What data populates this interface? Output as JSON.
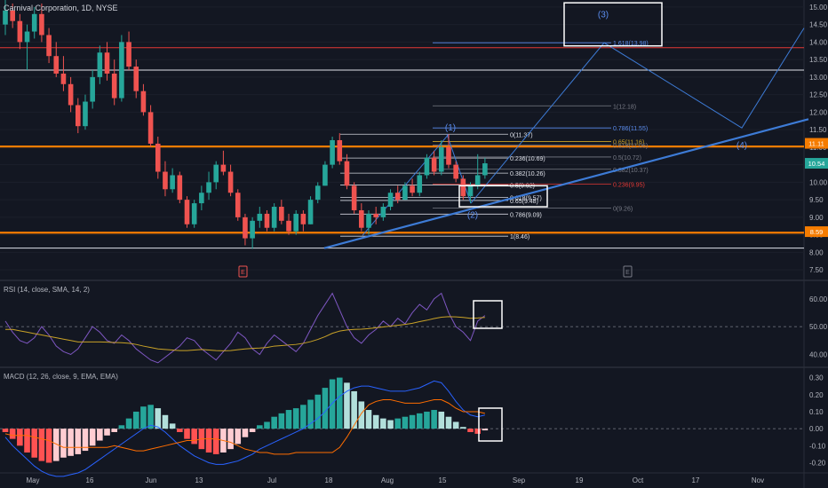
{
  "header": {
    "symbol_line": "Carnival Corporation, 1D, NYSE"
  },
  "rsi_label": "RSI (14, close, SMA, 14, 2)",
  "macd_label": "MACD (12, 26, close, 9, EMA, EMA)",
  "colors": {
    "bg": "#131722",
    "up": "#26a69a",
    "down": "#ef5350",
    "grid": "#2a2e39",
    "orange": "#f57c00",
    "red_line": "#e53935",
    "white_line": "#e0e3eb",
    "blue": "#2962ff",
    "rsi": "#7e57c2",
    "rsi_ma": "#c9a227",
    "macd_line": "#2962ff",
    "signal": "#ff6d00",
    "hist_up_strong": "#26a69a",
    "hist_up_weak": "#b2dfdb",
    "hist_dn_strong": "#ff5252",
    "hist_dn_weak": "#ffcdd2"
  },
  "chart_data": [
    {
      "type": "candlestick",
      "title": "Carnival Corporation, 1D, NYSE",
      "x_ticks": [
        "May",
        "16",
        "Jun",
        "13",
        "Jul",
        "18",
        "Aug",
        "15",
        "Sep",
        "19",
        "Oct",
        "17",
        "Nov"
      ],
      "y_ticks": [
        7.5,
        8.0,
        8.5,
        9.0,
        9.5,
        10.0,
        10.5,
        11.0,
        11.5,
        12.0,
        12.5,
        13.0,
        13.5,
        14.0,
        14.5,
        15.0
      ],
      "ylim": [
        7.25,
        15.2
      ],
      "price_tags": [
        {
          "value": "11.11",
          "color": "#f57c00"
        },
        {
          "value": "10.54",
          "color": "#26a69a"
        },
        {
          "value": "8.59",
          "color": "#f57c00"
        }
      ],
      "earnings_markers": [
        "E",
        "E"
      ],
      "candles": [
        {
          "o": 14.5,
          "h": 15.2,
          "l": 14.2,
          "c": 14.9
        },
        {
          "o": 14.9,
          "h": 15.1,
          "l": 14.4,
          "c": 14.6
        },
        {
          "o": 14.6,
          "h": 14.8,
          "l": 13.8,
          "c": 14.0
        },
        {
          "o": 14.0,
          "h": 14.5,
          "l": 13.2,
          "c": 14.3
        },
        {
          "o": 14.3,
          "h": 15.0,
          "l": 14.1,
          "c": 14.8
        },
        {
          "o": 14.8,
          "h": 15.1,
          "l": 14.0,
          "c": 14.2
        },
        {
          "o": 14.2,
          "h": 14.4,
          "l": 13.4,
          "c": 13.6
        },
        {
          "o": 13.6,
          "h": 14.0,
          "l": 13.0,
          "c": 13.1
        },
        {
          "o": 13.1,
          "h": 13.6,
          "l": 12.6,
          "c": 12.8
        },
        {
          "o": 12.8,
          "h": 13.0,
          "l": 12.0,
          "c": 12.2
        },
        {
          "o": 12.2,
          "h": 12.4,
          "l": 11.4,
          "c": 11.6
        },
        {
          "o": 11.6,
          "h": 12.5,
          "l": 11.5,
          "c": 12.3
        },
        {
          "o": 12.3,
          "h": 13.2,
          "l": 12.1,
          "c": 13.0
        },
        {
          "o": 13.0,
          "h": 13.9,
          "l": 12.8,
          "c": 13.7
        },
        {
          "o": 13.7,
          "h": 14.0,
          "l": 12.9,
          "c": 13.1
        },
        {
          "o": 13.1,
          "h": 13.5,
          "l": 12.2,
          "c": 12.4
        },
        {
          "o": 12.4,
          "h": 14.2,
          "l": 12.3,
          "c": 14.0
        },
        {
          "o": 14.0,
          "h": 14.3,
          "l": 13.2,
          "c": 13.3
        },
        {
          "o": 13.3,
          "h": 13.5,
          "l": 12.4,
          "c": 12.6
        },
        {
          "o": 12.6,
          "h": 12.8,
          "l": 11.9,
          "c": 12.0
        },
        {
          "o": 12.0,
          "h": 12.2,
          "l": 11.0,
          "c": 11.1
        },
        {
          "o": 11.1,
          "h": 11.3,
          "l": 10.1,
          "c": 10.3
        },
        {
          "o": 10.3,
          "h": 10.6,
          "l": 9.6,
          "c": 9.8
        },
        {
          "o": 9.8,
          "h": 10.4,
          "l": 9.7,
          "c": 10.2
        },
        {
          "o": 10.2,
          "h": 10.3,
          "l": 9.4,
          "c": 9.5
        },
        {
          "o": 9.5,
          "h": 9.6,
          "l": 8.7,
          "c": 8.8
        },
        {
          "o": 8.8,
          "h": 9.5,
          "l": 8.7,
          "c": 9.4
        },
        {
          "o": 9.4,
          "h": 9.9,
          "l": 9.2,
          "c": 9.7
        },
        {
          "o": 9.7,
          "h": 10.3,
          "l": 9.5,
          "c": 10.0
        },
        {
          "o": 10.0,
          "h": 10.6,
          "l": 9.8,
          "c": 10.5
        },
        {
          "o": 10.5,
          "h": 10.9,
          "l": 10.2,
          "c": 10.3
        },
        {
          "o": 10.3,
          "h": 10.5,
          "l": 9.6,
          "c": 9.7
        },
        {
          "o": 9.7,
          "h": 9.8,
          "l": 8.9,
          "c": 9.0
        },
        {
          "o": 9.0,
          "h": 9.1,
          "l": 8.2,
          "c": 8.4
        },
        {
          "o": 8.4,
          "h": 9.0,
          "l": 8.1,
          "c": 8.9
        },
        {
          "o": 8.9,
          "h": 9.3,
          "l": 8.7,
          "c": 9.1
        },
        {
          "o": 9.1,
          "h": 9.2,
          "l": 8.6,
          "c": 8.7
        },
        {
          "o": 8.7,
          "h": 9.4,
          "l": 8.6,
          "c": 9.3
        },
        {
          "o": 9.3,
          "h": 9.5,
          "l": 8.8,
          "c": 8.9
        },
        {
          "o": 8.9,
          "h": 9.1,
          "l": 8.5,
          "c": 8.6
        },
        {
          "o": 8.6,
          "h": 9.2,
          "l": 8.5,
          "c": 9.1
        },
        {
          "o": 9.1,
          "h": 9.2,
          "l": 8.6,
          "c": 8.8
        },
        {
          "o": 8.8,
          "h": 9.6,
          "l": 8.8,
          "c": 9.5
        },
        {
          "o": 9.5,
          "h": 10.0,
          "l": 9.4,
          "c": 9.9
        },
        {
          "o": 9.9,
          "h": 10.6,
          "l": 9.9,
          "c": 10.5
        },
        {
          "o": 10.5,
          "h": 11.3,
          "l": 10.4,
          "c": 11.2
        },
        {
          "o": 11.2,
          "h": 11.4,
          "l": 10.5,
          "c": 10.6
        },
        {
          "o": 10.6,
          "h": 10.8,
          "l": 9.8,
          "c": 9.9
        },
        {
          "o": 9.9,
          "h": 10.0,
          "l": 9.1,
          "c": 9.2
        },
        {
          "o": 9.2,
          "h": 9.4,
          "l": 8.6,
          "c": 8.7
        },
        {
          "o": 8.7,
          "h": 9.2,
          "l": 8.5,
          "c": 9.1
        },
        {
          "o": 9.1,
          "h": 9.3,
          "l": 8.8,
          "c": 9.0
        },
        {
          "o": 9.0,
          "h": 9.4,
          "l": 8.9,
          "c": 9.3
        },
        {
          "o": 9.3,
          "h": 9.8,
          "l": 9.2,
          "c": 9.7
        },
        {
          "o": 9.7,
          "h": 9.9,
          "l": 9.4,
          "c": 9.5
        },
        {
          "o": 9.5,
          "h": 10.0,
          "l": 9.5,
          "c": 9.9
        },
        {
          "o": 9.9,
          "h": 10.1,
          "l": 9.6,
          "c": 9.7
        },
        {
          "o": 9.7,
          "h": 10.3,
          "l": 9.6,
          "c": 10.2
        },
        {
          "o": 10.2,
          "h": 10.8,
          "l": 10.1,
          "c": 10.7
        },
        {
          "o": 10.7,
          "h": 10.9,
          "l": 10.2,
          "c": 10.3
        },
        {
          "o": 10.3,
          "h": 11.2,
          "l": 10.2,
          "c": 11.0
        },
        {
          "o": 11.0,
          "h": 11.37,
          "l": 10.4,
          "c": 10.5
        },
        {
          "o": 10.5,
          "h": 10.6,
          "l": 10.0,
          "c": 10.1
        },
        {
          "o": 10.1,
          "h": 10.2,
          "l": 9.5,
          "c": 9.6
        },
        {
          "o": 9.6,
          "h": 10.0,
          "l": 9.4,
          "c": 9.9
        },
        {
          "o": 9.9,
          "h": 10.8,
          "l": 9.8,
          "c": 10.2
        },
        {
          "o": 10.2,
          "h": 10.7,
          "l": 10.1,
          "c": 10.54
        }
      ],
      "horizontal_levels": [
        {
          "value": 13.84,
          "color": "#e53935"
        },
        {
          "value": 13.2,
          "color": "#e0e3eb"
        },
        {
          "value": 11.02,
          "color": "#f57c00"
        },
        {
          "value": 8.56,
          "color": "#f57c00"
        },
        {
          "value": 8.12,
          "color": "#e0e3eb"
        }
      ],
      "fib_retracement": [
        {
          "label": "0(11.37)",
          "value": 11.37
        },
        {
          "label": "0.236(10.69)",
          "value": 10.69
        },
        {
          "label": "0.382(10.26)",
          "value": 10.26
        },
        {
          "label": "0.5(9.92)",
          "value": 9.92
        },
        {
          "label": "0.618(9.57)",
          "value": 9.57
        },
        {
          "label": "0.65(9.48)",
          "value": 9.48
        },
        {
          "label": "0.786(9.09)",
          "value": 9.09
        },
        {
          "label": "1(8.46)",
          "value": 8.46
        }
      ],
      "fib_extension": [
        {
          "label": "1.618(13.98)",
          "value": 13.98,
          "color": "#5b8def"
        },
        {
          "label": "1(12.18)",
          "value": 12.18,
          "color": "#787b86"
        },
        {
          "label": "0.786(11.55)",
          "value": 11.55,
          "color": "#5b8def"
        },
        {
          "label": "0.65(11.16)",
          "value": 11.16,
          "color": "#c9a227"
        },
        {
          "label": "0.618(11.06)",
          "value": 11.06,
          "color": "#787b86"
        },
        {
          "label": "0.5(10.72)",
          "value": 10.72,
          "color": "#787b86"
        },
        {
          "label": "0.382(10.37)",
          "value": 10.37,
          "color": "#787b86"
        },
        {
          "label": "0.236(9.95)",
          "value": 9.95,
          "color": "#e53935"
        },
        {
          "label": "0(9.26)",
          "value": 9.26,
          "color": "#787b86"
        }
      ],
      "wave_labels": [
        "(1)",
        "(2)",
        "(3)",
        "(4)"
      ]
    },
    {
      "type": "line",
      "title": "RSI (14, close, SMA, 14, 2)",
      "y_ticks": [
        40.0,
        50.0,
        60.0
      ],
      "ylim": [
        36,
        66
      ],
      "reference_level": 50,
      "series": [
        {
          "name": "RSI",
          "values": [
            52,
            48,
            45,
            44,
            46,
            50,
            47,
            43,
            41,
            40,
            42,
            46,
            50,
            48,
            45,
            44,
            47,
            45,
            42,
            40,
            38,
            37,
            39,
            41,
            43,
            46,
            45,
            42,
            40,
            38,
            41,
            44,
            48,
            46,
            42,
            40,
            44,
            47,
            45,
            43,
            41,
            44,
            49,
            54,
            58,
            62,
            56,
            50,
            46,
            44,
            47,
            49,
            52,
            50,
            53,
            51,
            55,
            58,
            56,
            60,
            62,
            55,
            50,
            48,
            45,
            52,
            54
          ]
        },
        {
          "name": "RSI-based MA",
          "values": [
            49,
            49,
            48.5,
            48,
            47.5,
            47,
            46.5,
            46,
            45.5,
            45,
            44.5,
            44.5,
            44.5,
            44.5,
            44.4,
            44.3,
            44.2,
            44,
            43.6,
            43,
            42.5,
            42,
            41.8,
            41.6,
            41.4,
            41.4,
            41.6,
            41.8,
            41.6,
            41.4,
            41.3,
            41.4,
            41.7,
            42,
            42.2,
            42.3,
            42.5,
            43,
            43.2,
            43.4,
            43.6,
            44,
            44.6,
            45.4,
            46.4,
            47.6,
            48.4,
            48.8,
            49,
            49.1,
            49.3,
            49.6,
            49.9,
            50.2,
            50.5,
            50.8,
            51.2,
            51.8,
            52.3,
            52.9,
            53.4,
            53.6,
            53.5,
            53.3,
            53,
            53.1,
            53.3
          ]
        }
      ]
    },
    {
      "type": "bar",
      "title": "MACD (12, 26, close, 9, EMA, EMA)",
      "y_ticks": [
        -0.2,
        -0.1,
        0.0,
        0.1,
        0.2,
        0.3
      ],
      "ylim": [
        -0.26,
        0.35
      ],
      "series": [
        {
          "name": "Histogram",
          "values": [
            -0.02,
            -0.06,
            -0.1,
            -0.14,
            -0.17,
            -0.19,
            -0.2,
            -0.19,
            -0.17,
            -0.16,
            -0.15,
            -0.13,
            -0.1,
            -0.07,
            -0.04,
            -0.02,
            0.02,
            0.06,
            0.1,
            0.13,
            0.14,
            0.12,
            0.08,
            0.03,
            -0.02,
            -0.06,
            -0.09,
            -0.12,
            -0.14,
            -0.15,
            -0.14,
            -0.12,
            -0.09,
            -0.05,
            -0.02,
            0.02,
            0.04,
            0.07,
            0.09,
            0.11,
            0.12,
            0.14,
            0.17,
            0.2,
            0.24,
            0.29,
            0.3,
            0.27,
            0.22,
            0.16,
            0.11,
            0.08,
            0.06,
            0.05,
            0.06,
            0.07,
            0.08,
            0.09,
            0.1,
            0.11,
            0.1,
            0.07,
            0.04,
            0.01,
            -0.02,
            -0.03,
            -0.01
          ]
        },
        {
          "name": "MACD",
          "values": [
            -0.05,
            -0.1,
            -0.14,
            -0.18,
            -0.22,
            -0.25,
            -0.27,
            -0.28,
            -0.28,
            -0.27,
            -0.26,
            -0.24,
            -0.21,
            -0.18,
            -0.15,
            -0.12,
            -0.09,
            -0.06,
            -0.03,
            0.0,
            0.02,
            0.01,
            -0.02,
            -0.06,
            -0.1,
            -0.13,
            -0.16,
            -0.18,
            -0.2,
            -0.21,
            -0.21,
            -0.2,
            -0.19,
            -0.17,
            -0.15,
            -0.12,
            -0.1,
            -0.08,
            -0.06,
            -0.04,
            -0.02,
            0.0,
            0.03,
            0.06,
            0.1,
            0.15,
            0.19,
            0.22,
            0.24,
            0.25,
            0.25,
            0.24,
            0.23,
            0.22,
            0.22,
            0.22,
            0.23,
            0.24,
            0.26,
            0.28,
            0.27,
            0.22,
            0.16,
            0.11,
            0.08,
            0.07,
            0.08
          ]
        },
        {
          "name": "Signal",
          "values": [
            -0.03,
            -0.04,
            -0.04,
            -0.04,
            -0.05,
            -0.06,
            -0.07,
            -0.09,
            -0.11,
            -0.11,
            -0.11,
            -0.11,
            -0.11,
            -0.11,
            -0.11,
            -0.1,
            -0.11,
            -0.12,
            -0.13,
            -0.13,
            -0.12,
            -0.11,
            -0.1,
            -0.09,
            -0.08,
            -0.07,
            -0.07,
            -0.06,
            -0.06,
            -0.06,
            -0.07,
            -0.08,
            -0.1,
            -0.12,
            -0.13,
            -0.14,
            -0.14,
            -0.15,
            -0.15,
            -0.15,
            -0.14,
            -0.14,
            -0.14,
            -0.14,
            -0.14,
            -0.14,
            -0.11,
            -0.05,
            0.02,
            0.09,
            0.14,
            0.16,
            0.17,
            0.17,
            0.16,
            0.15,
            0.15,
            0.15,
            0.16,
            0.17,
            0.17,
            0.15,
            0.12,
            0.1,
            0.1,
            0.1,
            0.09
          ]
        }
      ]
    }
  ]
}
